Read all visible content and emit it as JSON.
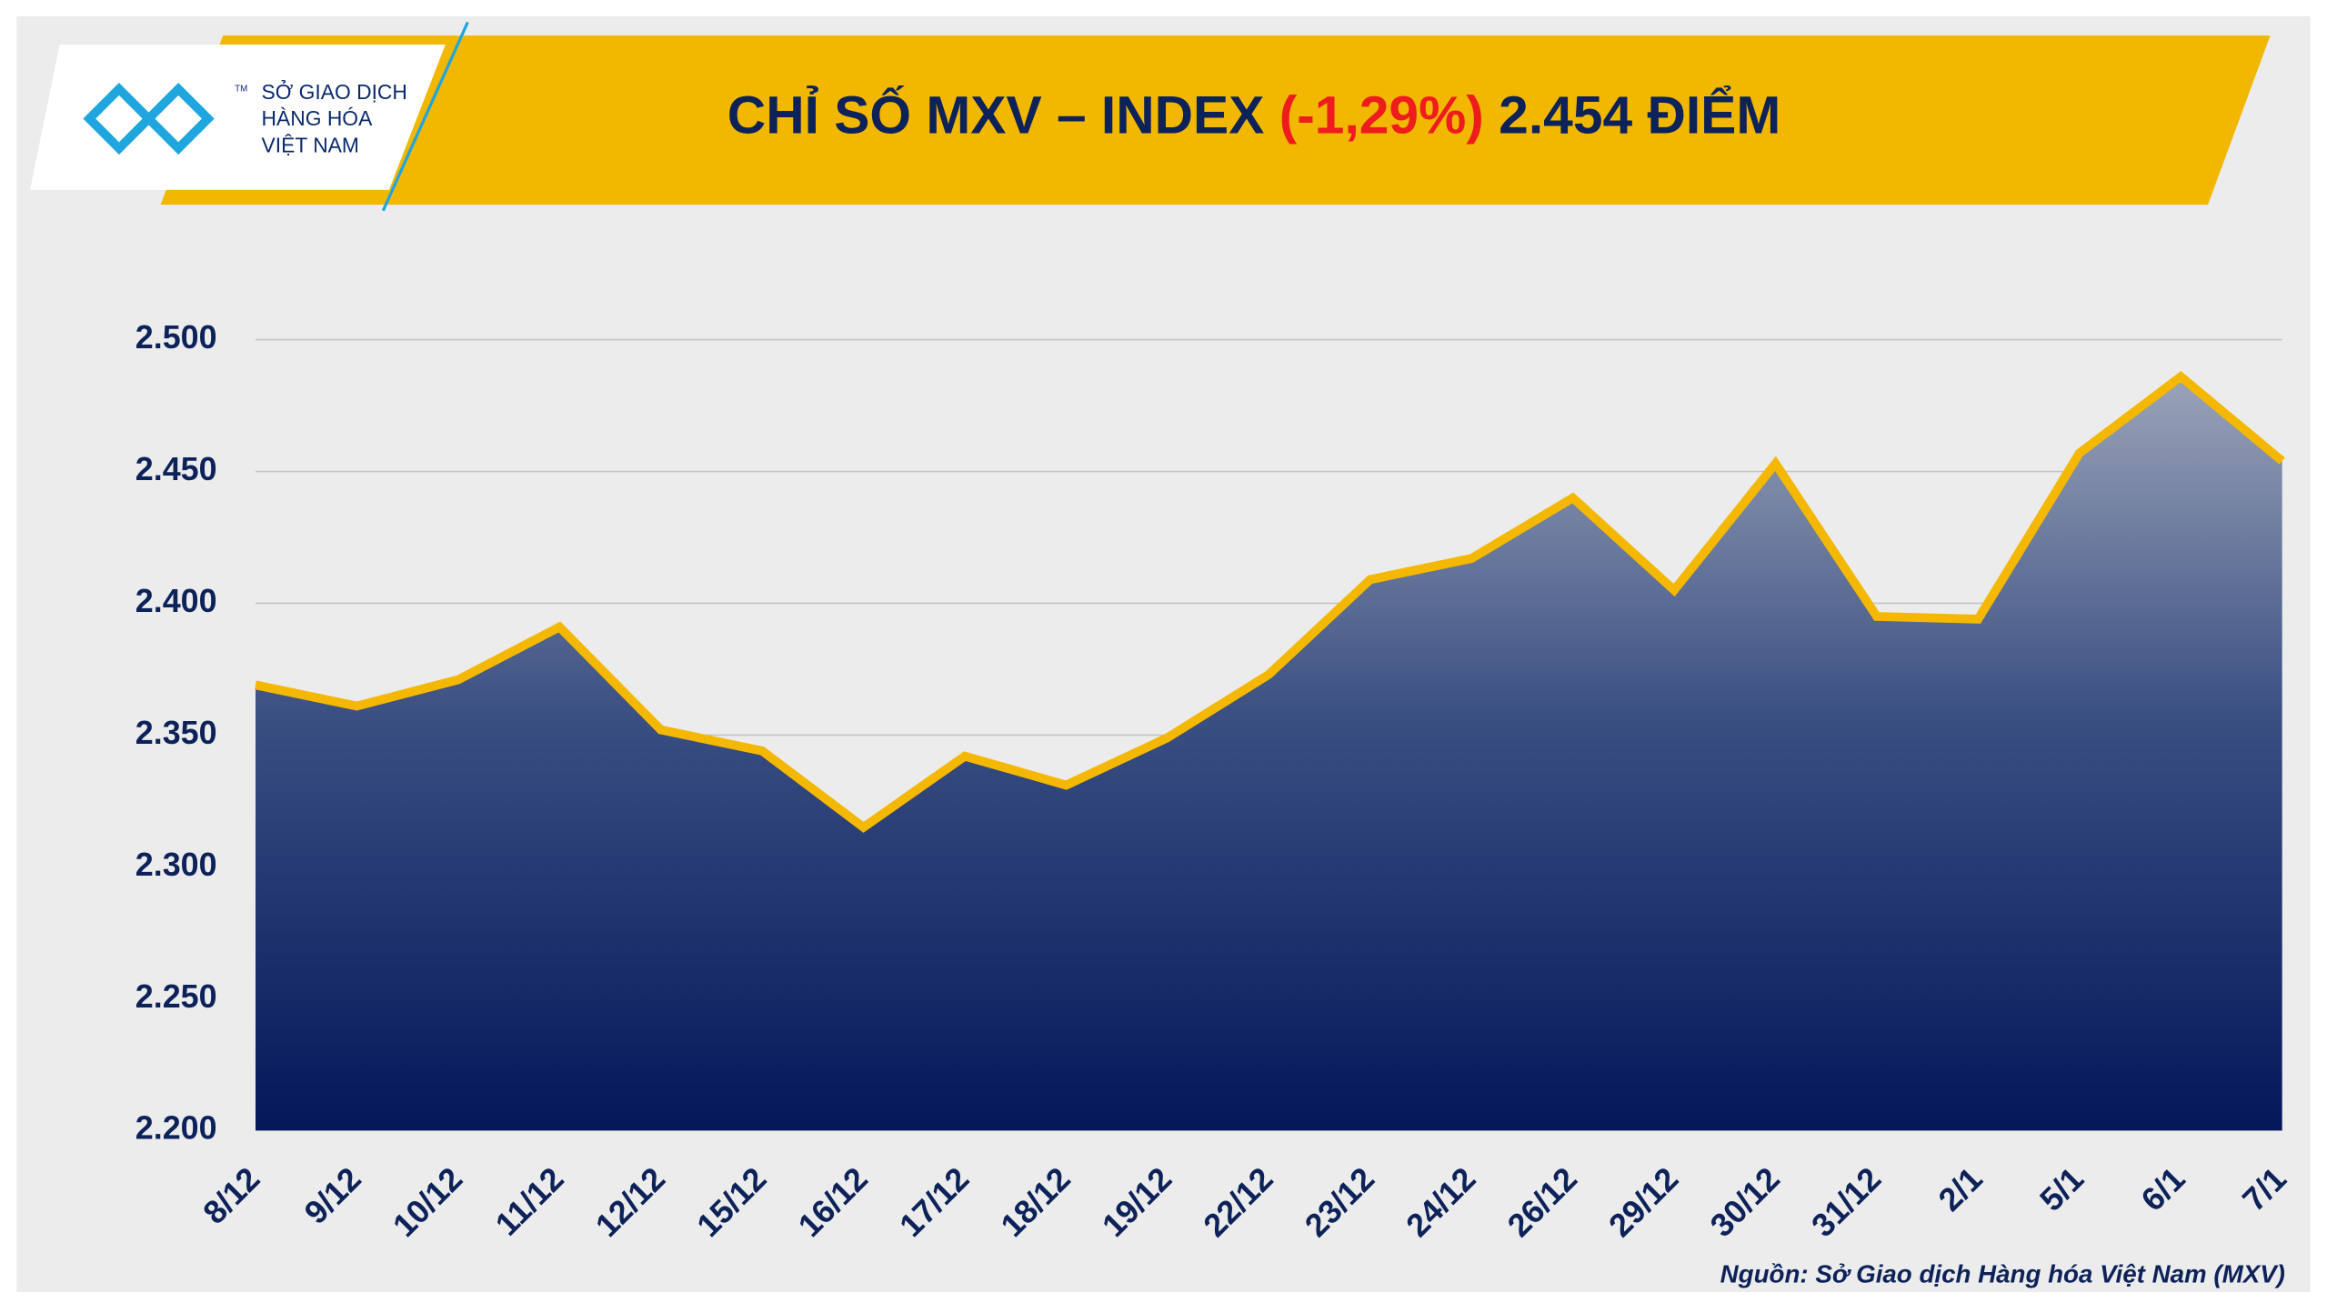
{
  "logo": {
    "line1": "SỞ GIAO DỊCH",
    "line2": "HÀNG HÓA",
    "line3": "VIỆT NAM",
    "tm": "TM"
  },
  "chart_data": {
    "type": "line",
    "title": {
      "part1": "CHỈ SỐ MXV – INDEX",
      "part2": "(-1,29%)",
      "part3": "2.454 ĐIỂM"
    },
    "categories": [
      "8/12",
      "9/12",
      "10/12",
      "11/12",
      "12/12",
      "15/12",
      "16/12",
      "17/12",
      "18/12",
      "19/12",
      "22/12",
      "23/12",
      "24/12",
      "26/12",
      "29/12",
      "30/12",
      "31/12",
      "2/1",
      "5/1",
      "6/1",
      "7/1"
    ],
    "series": [
      {
        "name": "MXV-Index",
        "color": "#f5b800",
        "values": [
          2369,
          2361,
          2371,
          2391,
          2352,
          2344,
          2315,
          2342,
          2331,
          2349,
          2373,
          2409,
          2417,
          2440,
          2405,
          2453,
          2395,
          2394,
          2457,
          2486,
          2454
        ]
      }
    ],
    "ylim": [
      2200,
      2500
    ],
    "yticks": [
      {
        "value": 2200,
        "label": "2.200"
      },
      {
        "value": 2250,
        "label": "2.250"
      },
      {
        "value": 2300,
        "label": "2.300"
      },
      {
        "value": 2350,
        "label": "2.350"
      },
      {
        "value": 2400,
        "label": "2.400"
      },
      {
        "value": 2450,
        "label": "2.450"
      },
      {
        "value": 2500,
        "label": "2.500"
      }
    ],
    "grid": true,
    "source": "Nguồn: Sở Giao dịch Hàng hóa Việt Nam (MXV)"
  }
}
